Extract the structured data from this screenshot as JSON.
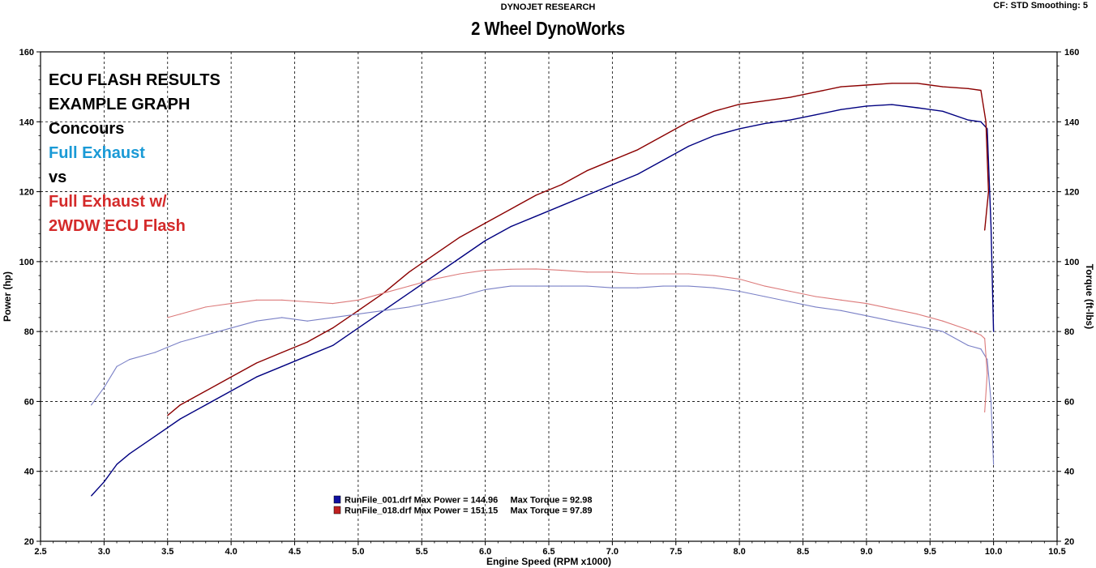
{
  "header": {
    "brand": "DYNOJET RESEARCH",
    "shop": "2 Wheel DynoWorks",
    "settings": "CF: STD  Smoothing: 5"
  },
  "annotations": [
    {
      "text": "ECU FLASH RESULTS",
      "color": "#000000"
    },
    {
      "text": "EXAMPLE GRAPH",
      "color": "#000000"
    },
    {
      "text": "Concours",
      "color": "#000000"
    },
    {
      "text": "Full Exhaust",
      "color": "#1a9ad6"
    },
    {
      "text": "vs",
      "color": "#000000"
    },
    {
      "text": "Full Exhaust w/",
      "color": "#d42a2a"
    },
    {
      "text": "2WDW ECU Flash",
      "color": "#d42a2a"
    }
  ],
  "chart_data": {
    "type": "line",
    "xlabel": "Engine Speed (RPM x1000)",
    "ylabel": "Power (hp)",
    "y2label": "Torque (ft-lbs)",
    "xlim": [
      2.5,
      10.5
    ],
    "ylim": [
      20,
      160
    ],
    "y2lim": [
      20,
      160
    ],
    "xticks": [
      "2.5",
      "3.0",
      "3.5",
      "4.0",
      "4.5",
      "5.0",
      "5.5",
      "6.0",
      "6.5",
      "7.0",
      "7.5",
      "8.0",
      "8.5",
      "9.0",
      "9.5",
      "10.0",
      "10.5"
    ],
    "yticks": [
      "20",
      "40",
      "60",
      "80",
      "100",
      "120",
      "140",
      "160"
    ],
    "y2ticks": [
      "20",
      "40",
      "60",
      "80",
      "100",
      "120",
      "140",
      "160"
    ],
    "grid": true,
    "legend": [
      {
        "text": "RunFile_001.drf Max Power = 144.96     Max Torque = 92.98",
        "color": "#1010a0"
      },
      {
        "text": "RunFile_018.drf Max Power = 151.15     Max Torque = 97.89",
        "color": "#c02020"
      }
    ],
    "series": [
      {
        "name": "RunFile_001.drf",
        "measure": "power",
        "color": "#000080",
        "x": [
          2.9,
          3.0,
          3.1,
          3.2,
          3.4,
          3.6,
          3.8,
          4.0,
          4.2,
          4.4,
          4.6,
          4.8,
          5.0,
          5.2,
          5.4,
          5.6,
          5.8,
          6.0,
          6.2,
          6.4,
          6.6,
          6.8,
          7.0,
          7.2,
          7.4,
          7.6,
          7.8,
          8.0,
          8.2,
          8.4,
          8.6,
          8.8,
          9.0,
          9.2,
          9.4,
          9.6,
          9.8,
          9.9,
          9.95,
          9.98,
          10.0
        ],
        "y": [
          33,
          37,
          42,
          45,
          50,
          55,
          59,
          63,
          67,
          70,
          73,
          76,
          81,
          86,
          91,
          96,
          101,
          106,
          110,
          113,
          116,
          119,
          122,
          125,
          129,
          133,
          136,
          138,
          139.5,
          140.5,
          142,
          143.5,
          144.5,
          144.9,
          144,
          143,
          140.5,
          140,
          138,
          110,
          80
        ]
      },
      {
        "name": "RunFile_018.drf",
        "measure": "power",
        "color": "#8b0000",
        "x": [
          3.5,
          3.6,
          3.8,
          4.0,
          4.2,
          4.4,
          4.6,
          4.8,
          5.0,
          5.2,
          5.4,
          5.6,
          5.8,
          6.0,
          6.2,
          6.4,
          6.6,
          6.8,
          7.0,
          7.2,
          7.4,
          7.6,
          7.8,
          8.0,
          8.2,
          8.4,
          8.6,
          8.8,
          9.0,
          9.2,
          9.4,
          9.6,
          9.8,
          9.9,
          9.94,
          9.96,
          9.93
        ],
        "y": [
          56,
          59,
          63,
          67,
          71,
          74,
          77,
          81,
          86,
          91,
          97,
          102,
          107,
          111,
          115,
          119,
          122,
          126,
          129,
          132,
          136,
          140,
          143,
          145,
          146,
          147,
          148.5,
          150,
          150.5,
          151,
          151,
          150,
          149.5,
          149,
          140,
          120,
          109
        ]
      },
      {
        "name": "RunFile_001.drf",
        "measure": "torque",
        "color": "#7a80c6",
        "x": [
          2.9,
          3.0,
          3.1,
          3.2,
          3.4,
          3.6,
          3.8,
          4.0,
          4.2,
          4.4,
          4.6,
          4.8,
          5.0,
          5.2,
          5.4,
          5.6,
          5.8,
          6.0,
          6.2,
          6.4,
          6.6,
          6.8,
          7.0,
          7.2,
          7.4,
          7.6,
          7.8,
          8.0,
          8.2,
          8.4,
          8.6,
          8.8,
          9.0,
          9.2,
          9.4,
          9.6,
          9.8,
          9.9,
          9.95,
          9.98,
          10.0
        ],
        "y": [
          59,
          64,
          70,
          72,
          74,
          77,
          79,
          81,
          83,
          84,
          83,
          84,
          85,
          86,
          87,
          88.5,
          90,
          92,
          93,
          93,
          93,
          93,
          92.5,
          92.5,
          93,
          93,
          92.5,
          91.5,
          90,
          88.5,
          87,
          86,
          84.5,
          83,
          81.5,
          80,
          76,
          75,
          72,
          60,
          42
        ]
      },
      {
        "name": "RunFile_018.drf",
        "measure": "torque",
        "color": "#dc7a7a",
        "x": [
          3.5,
          3.6,
          3.8,
          4.0,
          4.2,
          4.4,
          4.6,
          4.8,
          5.0,
          5.2,
          5.4,
          5.6,
          5.8,
          6.0,
          6.2,
          6.4,
          6.6,
          6.8,
          7.0,
          7.2,
          7.4,
          7.6,
          7.8,
          8.0,
          8.2,
          8.4,
          8.6,
          8.8,
          9.0,
          9.2,
          9.4,
          9.6,
          9.8,
          9.9,
          9.93,
          9.95,
          9.93
        ],
        "y": [
          84,
          85,
          87,
          88,
          89,
          89,
          88.5,
          88,
          89,
          91,
          93,
          95,
          96.5,
          97.5,
          97.8,
          97.9,
          97.5,
          97,
          97,
          96.5,
          96.5,
          96.5,
          96,
          95,
          93,
          91.5,
          90,
          89,
          88,
          86.5,
          85,
          83,
          80.5,
          79,
          78,
          68,
          57
        ]
      }
    ]
  }
}
